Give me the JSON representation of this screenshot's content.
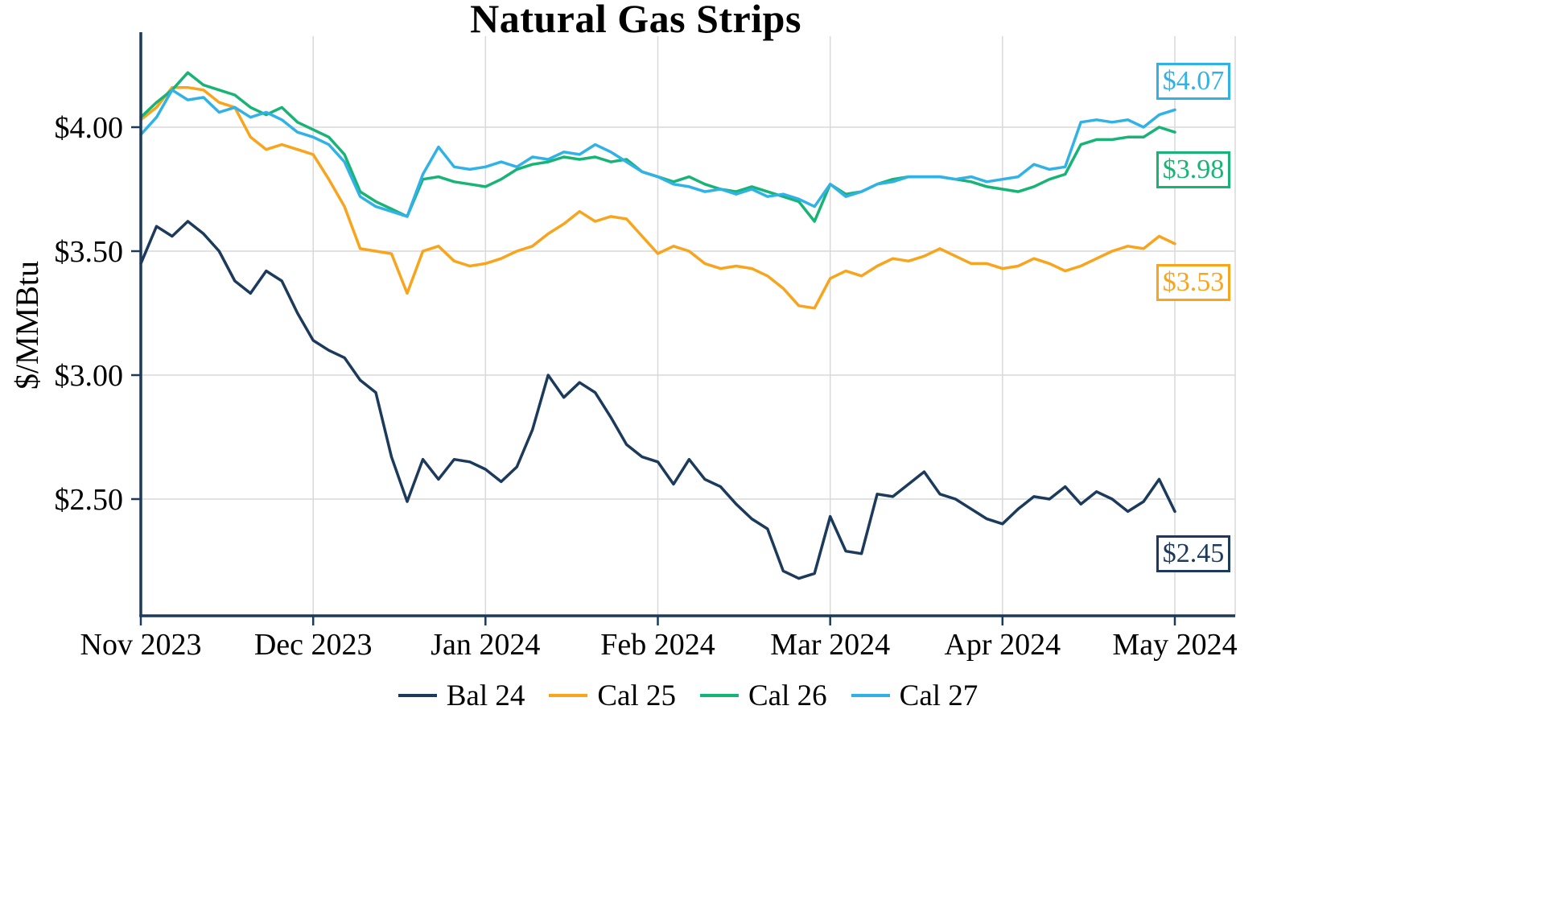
{
  "colors": {
    "axis": "#1B3A5C",
    "grid": "#D9D9D9",
    "background": "#FFFFFF",
    "text": "#000000"
  },
  "chart_data": {
    "type": "line",
    "title": "Natural Gas Strips",
    "xlabel": "",
    "ylabel": "$/MMBtu",
    "x_tick_labels": [
      "Nov 2023",
      "Dec 2023",
      "Jan 2024",
      "Feb 2024",
      "Mar 2024",
      "Apr 2024",
      "May 2024"
    ],
    "y_ticks": [
      2.5,
      3.0,
      3.5,
      4.0
    ],
    "y_tick_labels": [
      "$2.50",
      "$3.00",
      "$3.50",
      "$4.00"
    ],
    "ylim": [
      2.02,
      4.38
    ],
    "grid": true,
    "legend_position": "bottom",
    "series": [
      {
        "name": "Bal 24",
        "color": "#1B3A5C",
        "end_label": "$2.45",
        "values": [
          3.45,
          3.6,
          3.56,
          3.62,
          3.57,
          3.5,
          3.38,
          3.33,
          3.42,
          3.38,
          3.25,
          3.14,
          3.1,
          3.07,
          2.98,
          2.93,
          2.67,
          2.49,
          2.66,
          2.58,
          2.66,
          2.65,
          2.62,
          2.57,
          2.63,
          2.78,
          3.0,
          2.91,
          2.97,
          2.93,
          2.83,
          2.72,
          2.67,
          2.65,
          2.56,
          2.66,
          2.58,
          2.55,
          2.48,
          2.42,
          2.38,
          2.21,
          2.18,
          2.2,
          2.43,
          2.29,
          2.28,
          2.52,
          2.51,
          2.56,
          2.61,
          2.52,
          2.5,
          2.46,
          2.42,
          2.4,
          2.46,
          2.51,
          2.5,
          2.55,
          2.48,
          2.53,
          2.5,
          2.45,
          2.49,
          2.58,
          2.45
        ]
      },
      {
        "name": "Cal 25",
        "color": "#F8A41D",
        "end_label": "$3.53",
        "values": [
          4.03,
          4.08,
          4.16,
          4.16,
          4.15,
          4.1,
          4.08,
          3.96,
          3.91,
          3.93,
          3.91,
          3.89,
          3.79,
          3.68,
          3.51,
          3.5,
          3.49,
          3.33,
          3.5,
          3.52,
          3.46,
          3.44,
          3.45,
          3.47,
          3.5,
          3.52,
          3.57,
          3.61,
          3.66,
          3.62,
          3.64,
          3.63,
          3.56,
          3.49,
          3.52,
          3.5,
          3.45,
          3.43,
          3.44,
          3.43,
          3.4,
          3.35,
          3.28,
          3.27,
          3.39,
          3.42,
          3.4,
          3.44,
          3.47,
          3.46,
          3.48,
          3.51,
          3.48,
          3.45,
          3.45,
          3.43,
          3.44,
          3.47,
          3.45,
          3.42,
          3.44,
          3.47,
          3.5,
          3.52,
          3.51,
          3.56,
          3.53
        ]
      },
      {
        "name": "Cal 26",
        "color": "#18B476",
        "end_label": "$3.98",
        "values": [
          4.04,
          4.1,
          4.15,
          4.22,
          4.17,
          4.15,
          4.13,
          4.08,
          4.05,
          4.08,
          4.02,
          3.99,
          3.96,
          3.89,
          3.74,
          3.7,
          3.67,
          3.64,
          3.79,
          3.8,
          3.78,
          3.77,
          3.76,
          3.79,
          3.83,
          3.85,
          3.86,
          3.88,
          3.87,
          3.88,
          3.86,
          3.87,
          3.82,
          3.8,
          3.78,
          3.8,
          3.77,
          3.75,
          3.74,
          3.76,
          3.74,
          3.72,
          3.7,
          3.62,
          3.77,
          3.73,
          3.74,
          3.77,
          3.79,
          3.8,
          3.8,
          3.8,
          3.79,
          3.78,
          3.76,
          3.75,
          3.74,
          3.76,
          3.79,
          3.81,
          3.93,
          3.95,
          3.95,
          3.96,
          3.96,
          4.0,
          3.98
        ]
      },
      {
        "name": "Cal 27",
        "color": "#31B2E7",
        "end_label": "$4.07",
        "values": [
          3.97,
          4.04,
          4.15,
          4.11,
          4.12,
          4.06,
          4.08,
          4.04,
          4.06,
          4.03,
          3.98,
          3.96,
          3.93,
          3.86,
          3.72,
          3.68,
          3.66,
          3.64,
          3.81,
          3.92,
          3.84,
          3.83,
          3.84,
          3.86,
          3.84,
          3.88,
          3.87,
          3.9,
          3.89,
          3.93,
          3.9,
          3.86,
          3.82,
          3.8,
          3.77,
          3.76,
          3.74,
          3.75,
          3.73,
          3.75,
          3.72,
          3.73,
          3.71,
          3.68,
          3.77,
          3.72,
          3.74,
          3.77,
          3.78,
          3.8,
          3.8,
          3.8,
          3.79,
          3.8,
          3.78,
          3.79,
          3.8,
          3.85,
          3.83,
          3.84,
          4.02,
          4.03,
          4.02,
          4.03,
          4.0,
          4.05,
          4.07
        ]
      }
    ],
    "end_labels": [
      {
        "series": "Cal 27",
        "text": "$4.07",
        "color": "#31B2E7"
      },
      {
        "series": "Cal 26",
        "text": "$3.98",
        "color": "#18B476"
      },
      {
        "series": "Cal 25",
        "text": "$3.53",
        "color": "#F8A41D"
      },
      {
        "series": "Bal 24",
        "text": "$2.45",
        "color": "#1B3A5C"
      }
    ]
  }
}
